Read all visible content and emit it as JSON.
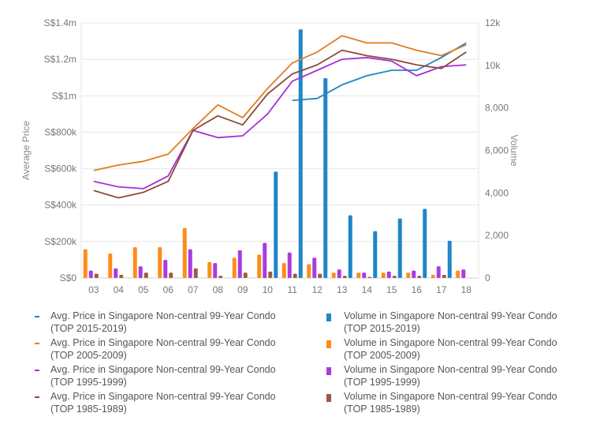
{
  "chart_data": {
    "type": "bar+line",
    "categories": [
      "03",
      "04",
      "05",
      "06",
      "07",
      "08",
      "09",
      "10",
      "11",
      "12",
      "13",
      "14",
      "15",
      "16",
      "17",
      "18"
    ],
    "y_left": {
      "title": "Average Price",
      "range": [
        0,
        1400000
      ],
      "ticks": [
        "S$0",
        "S$200k",
        "S$400k",
        "S$600k",
        "S$800k",
        "S$1m",
        "S$1.2m",
        "S$1.4m"
      ]
    },
    "y_right": {
      "title": "Volume",
      "range": [
        0,
        12000
      ],
      "ticks": [
        "0",
        "2,000",
        "4,000",
        "6,000",
        "8,000",
        "10k",
        "12k"
      ]
    },
    "line_series": [
      {
        "name": "Avg. Price in Singapore Non-central 99-Year Condo (TOP 2015-2019)",
        "color": "#1f86c7",
        "values": [
          null,
          null,
          null,
          null,
          null,
          null,
          null,
          null,
          975000,
          985000,
          1060000,
          1110000,
          1140000,
          1140000,
          1210000,
          1290000
        ]
      },
      {
        "name": "Avg. Price in Singapore Non-central 99-Year Condo (TOP 2005-2009)",
        "color": "#e37b1f",
        "values": [
          590000,
          620000,
          640000,
          680000,
          820000,
          950000,
          880000,
          1040000,
          1180000,
          1240000,
          1330000,
          1290000,
          1290000,
          1250000,
          1220000,
          1280000
        ]
      },
      {
        "name": "Avg. Price in Singapore Non-central 99-Year Condo (TOP 1995-1999)",
        "color": "#a62fd8",
        "values": [
          530000,
          500000,
          490000,
          560000,
          810000,
          770000,
          780000,
          900000,
          1080000,
          1140000,
          1200000,
          1210000,
          1190000,
          1110000,
          1160000,
          1170000
        ]
      },
      {
        "name": "Avg. Price in Singapore Non-central 99-Year Condo (TOP 1985-1989)",
        "color": "#8b4a3a",
        "values": [
          480000,
          440000,
          470000,
          530000,
          810000,
          890000,
          840000,
          1010000,
          1120000,
          1170000,
          1250000,
          1220000,
          1200000,
          1170000,
          1150000,
          1240000
        ]
      }
    ],
    "bar_series": [
      {
        "name": "Volume in Singapore Non-central 99-Year Condo (TOP 2015-2019)",
        "color": "#1f86c7",
        "values": [
          0,
          0,
          0,
          0,
          0,
          0,
          0,
          5000,
          11700,
          9400,
          2950,
          2200,
          2800,
          3250,
          1750,
          0
        ]
      },
      {
        "name": "Volume in Singapore Non-central 99-Year Condo (TOP 2005-2009)",
        "color": "#ff8c1a",
        "values": [
          1350,
          1150,
          1450,
          1450,
          2350,
          750,
          950,
          1100,
          700,
          650,
          250,
          250,
          250,
          250,
          150,
          350
        ]
      },
      {
        "name": "Volume in Singapore Non-central 99-Year Condo (TOP 1995-1999)",
        "color": "#a93be0",
        "values": [
          350,
          450,
          550,
          850,
          1350,
          700,
          1300,
          1650,
          1200,
          950,
          400,
          250,
          300,
          350,
          550,
          400
        ]
      },
      {
        "name": "Volume in Singapore Non-central 99-Year Condo (TOP 1985-1989)",
        "color": "#9c5a44",
        "values": [
          200,
          150,
          250,
          250,
          450,
          100,
          250,
          300,
          200,
          200,
          100,
          50,
          100,
          100,
          150,
          0
        ]
      }
    ]
  }
}
